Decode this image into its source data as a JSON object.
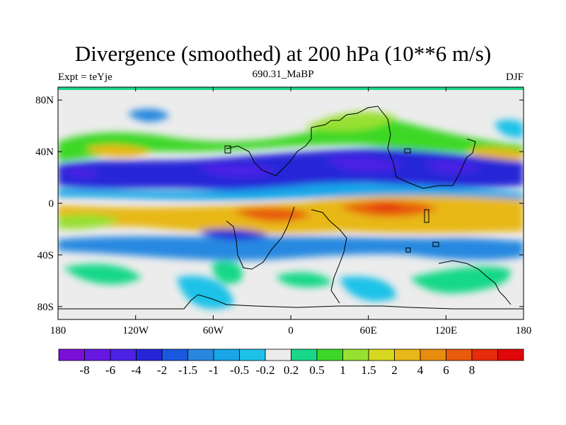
{
  "title": "Divergence (smoothed) at 200 hPa (10**6 m/s)",
  "left_label": "Expt = teYje",
  "center_label": "690.31_MaBP",
  "right_label": "DJF",
  "map": {
    "lon_range": [
      -180,
      180
    ],
    "lat_range": [
      -90,
      90
    ],
    "x_ticks": [
      {
        "value": -180,
        "label": "180"
      },
      {
        "value": -120,
        "label": "120W"
      },
      {
        "value": -60,
        "label": "60W"
      },
      {
        "value": 0,
        "label": "0"
      },
      {
        "value": 60,
        "label": "60E"
      },
      {
        "value": 120,
        "label": "120E"
      },
      {
        "value": 180,
        "label": "180"
      }
    ],
    "y_ticks": [
      {
        "value": 80,
        "label": "80N"
      },
      {
        "value": 40,
        "label": "40N"
      },
      {
        "value": 0,
        "label": "0"
      },
      {
        "value": -40,
        "label": "40S"
      },
      {
        "value": -80,
        "label": "80S"
      }
    ]
  },
  "colorbar": {
    "colors": [
      "#7a10d8",
      "#6618e2",
      "#4c22e6",
      "#2626d8",
      "#1a58e0",
      "#2888e0",
      "#18a6e8",
      "#1ec2e8",
      "#ececec",
      "#18d888",
      "#3cd828",
      "#98e030",
      "#d8d820",
      "#e8b818",
      "#e88c10",
      "#e85a0c",
      "#e62c0a",
      "#e00808"
    ],
    "labels": [
      "-8",
      "-6",
      "-4",
      "-2",
      "-1.5",
      "-1",
      "-0.5",
      "-0.2",
      "0.2",
      "0.5",
      "1",
      "1.5",
      "2",
      "4",
      "6",
      "8"
    ]
  }
}
